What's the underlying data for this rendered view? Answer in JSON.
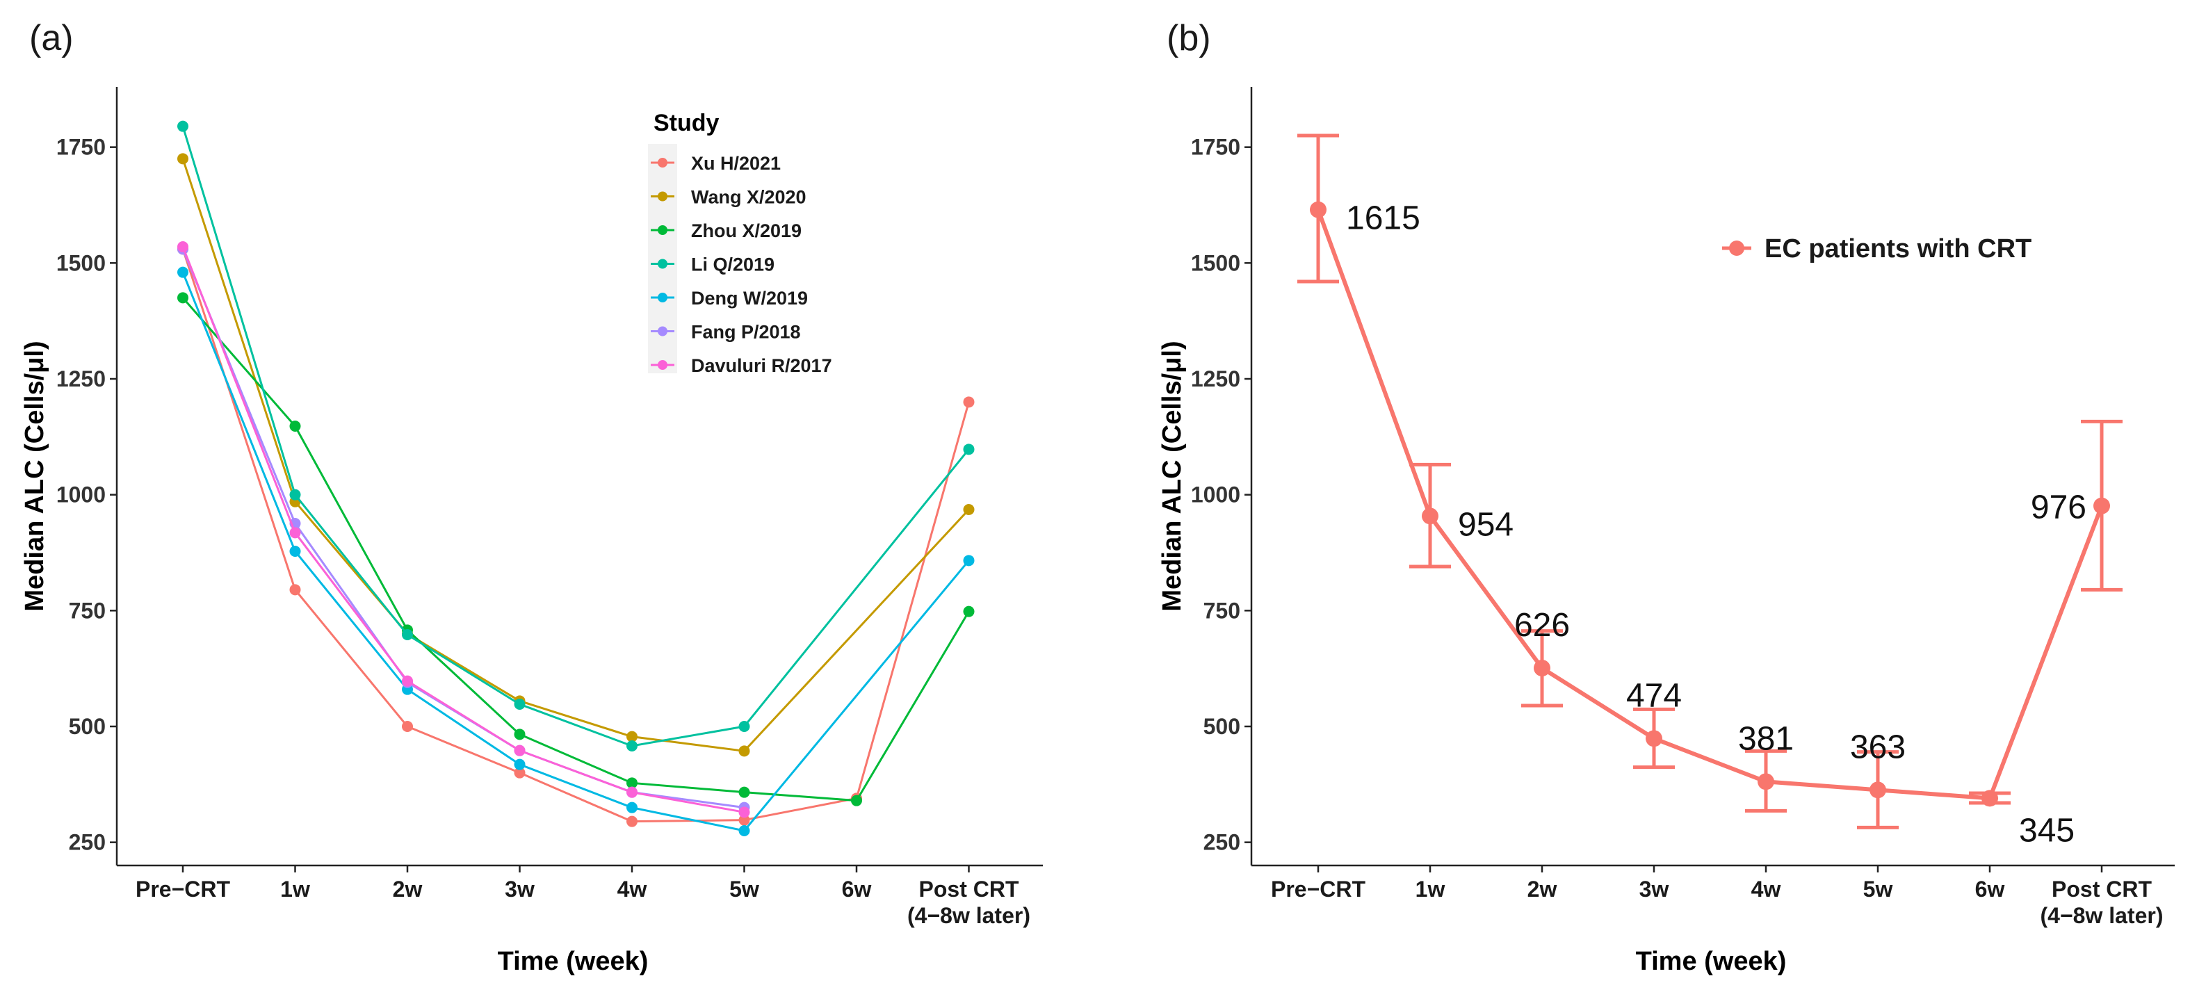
{
  "chart_data": [
    {
      "panel": "(a)",
      "type": "line",
      "xlabel": "Time (week)",
      "ylabel": "Median ALC (Cells/μl)",
      "categories": [
        "Pre−CRT",
        "1w",
        "2w",
        "3w",
        "4w",
        "5w",
        "6w",
        "Post CRT\n(4−8w later)"
      ],
      "yticks": [
        250,
        500,
        750,
        1000,
        1250,
        1500,
        1750
      ],
      "ylim": [
        200,
        1880
      ],
      "legend_title": "Study",
      "legend_position": "top-right",
      "series": [
        {
          "name": "Xu H/2021",
          "color": "#F8766D",
          "values": [
            1530,
            795,
            500,
            400,
            295,
            298,
            345,
            1200
          ]
        },
        {
          "name": "Wang X/2020",
          "color": "#C49A00",
          "values": [
            1725,
            985,
            700,
            555,
            478,
            447,
            null,
            968
          ]
        },
        {
          "name": "Zhou X/2019",
          "color": "#00BA38",
          "values": [
            1425,
            1148,
            708,
            483,
            378,
            358,
            340,
            748
          ]
        },
        {
          "name": "Li Q/2019",
          "color": "#00C19F",
          "values": [
            1795,
            1000,
            698,
            548,
            458,
            500,
            null,
            1098
          ]
        },
        {
          "name": "Deng W/2019",
          "color": "#00B9E3",
          "values": [
            1480,
            878,
            580,
            418,
            325,
            275,
            null,
            858
          ]
        },
        {
          "name": "Fang P/2018",
          "color": "#A58AFF",
          "values": [
            1530,
            938,
            595,
            448,
            358,
            325,
            null,
            null
          ]
        },
        {
          "name": "Davuluri R/2017",
          "color": "#FB61D7",
          "values": [
            1535,
            918,
            598,
            448,
            358,
            315,
            null,
            null
          ]
        }
      ]
    },
    {
      "panel": "(b)",
      "type": "line",
      "xlabel": "Time (week)",
      "ylabel": "Median ALC (Cells/μl)",
      "categories": [
        "Pre−CRT",
        "1w",
        "2w",
        "3w",
        "4w",
        "5w",
        "6w",
        "Post CRT\n(4−8w later)"
      ],
      "yticks": [
        250,
        500,
        750,
        1000,
        1250,
        1500,
        1750
      ],
      "ylim": [
        200,
        1880
      ],
      "legend_position": "top-right",
      "series": [
        {
          "name": "EC patients with CRT",
          "color": "#F8766D",
          "values": [
            1615,
            954,
            626,
            474,
            381,
            363,
            345,
            976
          ],
          "value_labels": [
            "1615",
            "954",
            "626",
            "474",
            "381",
            "363",
            "345",
            "976"
          ],
          "error_low": [
            1460,
            845,
            545,
            412,
            318,
            282,
            335,
            795
          ],
          "error_high": [
            1775,
            1065,
            706,
            537,
            447,
            445,
            356,
            1158
          ]
        }
      ]
    }
  ]
}
